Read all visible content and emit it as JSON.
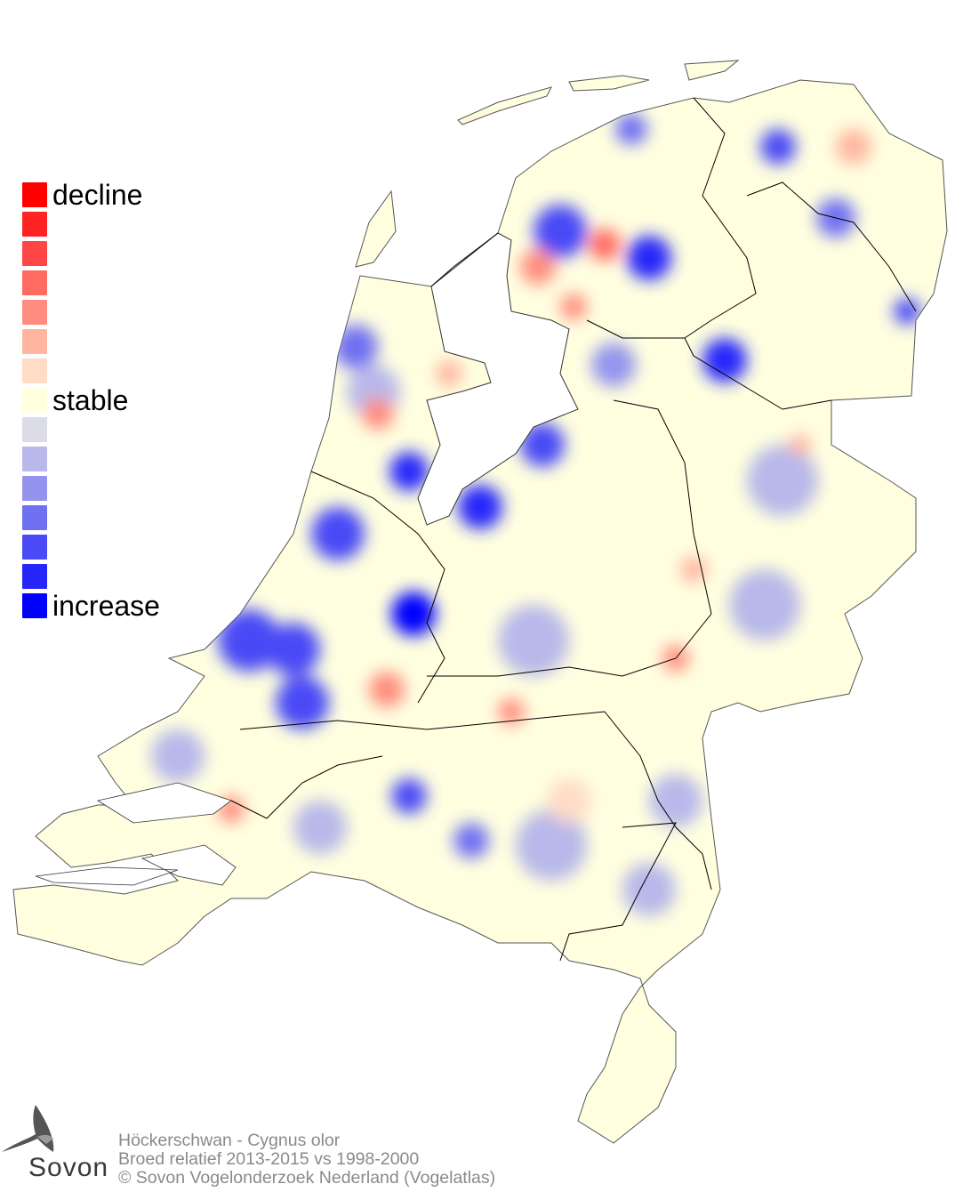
{
  "legend": {
    "items": [
      {
        "color": "#ff0000",
        "label": "decline"
      },
      {
        "color": "#ff2424",
        "label": ""
      },
      {
        "color": "#ff4646",
        "label": ""
      },
      {
        "color": "#ff6a62",
        "label": ""
      },
      {
        "color": "#ff8c7e",
        "label": ""
      },
      {
        "color": "#ffb6a0",
        "label": ""
      },
      {
        "color": "#ffdcc6",
        "label": ""
      },
      {
        "color": "#ffffe0",
        "label": "stable"
      },
      {
        "color": "#dcdce6",
        "label": ""
      },
      {
        "color": "#b8b8ea",
        "label": ""
      },
      {
        "color": "#9494ee",
        "label": ""
      },
      {
        "color": "#7070f2",
        "label": ""
      },
      {
        "color": "#4a4af6",
        "label": ""
      },
      {
        "color": "#2626fa",
        "label": ""
      },
      {
        "color": "#0000ff",
        "label": "increase"
      }
    ]
  },
  "footer": {
    "species": "Höckerschwan - Cygnus olor",
    "period": "Broed relatief 2013-2015 vs 1998-2000",
    "copyright": "© Sovon Vogelonderzoek Nederland (Vogelatlas)"
  },
  "logo": {
    "text": "Sovon"
  },
  "map": {
    "land_color": "#ffffe0",
    "border_color": "#000000"
  }
}
